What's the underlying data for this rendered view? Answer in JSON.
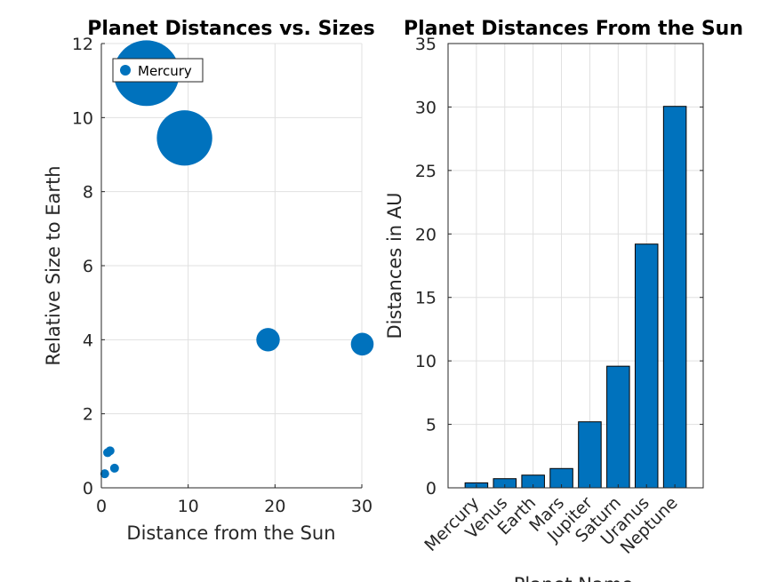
{
  "chart_data": [
    {
      "type": "scatter",
      "title": "Planet Distances vs. Sizes",
      "xlabel": "Distance from the Sun",
      "ylabel": "Relative Size to Earth",
      "xlim": [
        0,
        30
      ],
      "ylim": [
        0,
        12
      ],
      "xticks": [
        0,
        10,
        20,
        30
      ],
      "yticks": [
        0,
        2,
        4,
        6,
        8,
        10,
        12
      ],
      "grid": true,
      "legend": {
        "entries": [
          "Mercury"
        ],
        "placement": "top-left"
      },
      "color": "#0072BD",
      "x": [
        0.39,
        0.72,
        1.0,
        1.52,
        5.2,
        9.58,
        19.2,
        30.05
      ],
      "y": [
        0.38,
        0.95,
        1.0,
        0.53,
        11.2,
        9.45,
        4.0,
        3.88
      ]
    },
    {
      "type": "bar",
      "title": "Planet Distances From the Sun",
      "xlabel": "Planet Name",
      "ylabel": "Distances in AU",
      "ylim": [
        0,
        35
      ],
      "yticks": [
        0,
        5,
        10,
        15,
        20,
        25,
        30,
        35
      ],
      "grid": true,
      "color": "#0072BD",
      "categories": [
        "Mercury",
        "Venus",
        "Earth",
        "Mars",
        "Jupiter",
        "Saturn",
        "Uranus",
        "Neptune"
      ],
      "values": [
        0.39,
        0.72,
        1.0,
        1.52,
        5.2,
        9.58,
        19.2,
        30.05
      ]
    }
  ]
}
